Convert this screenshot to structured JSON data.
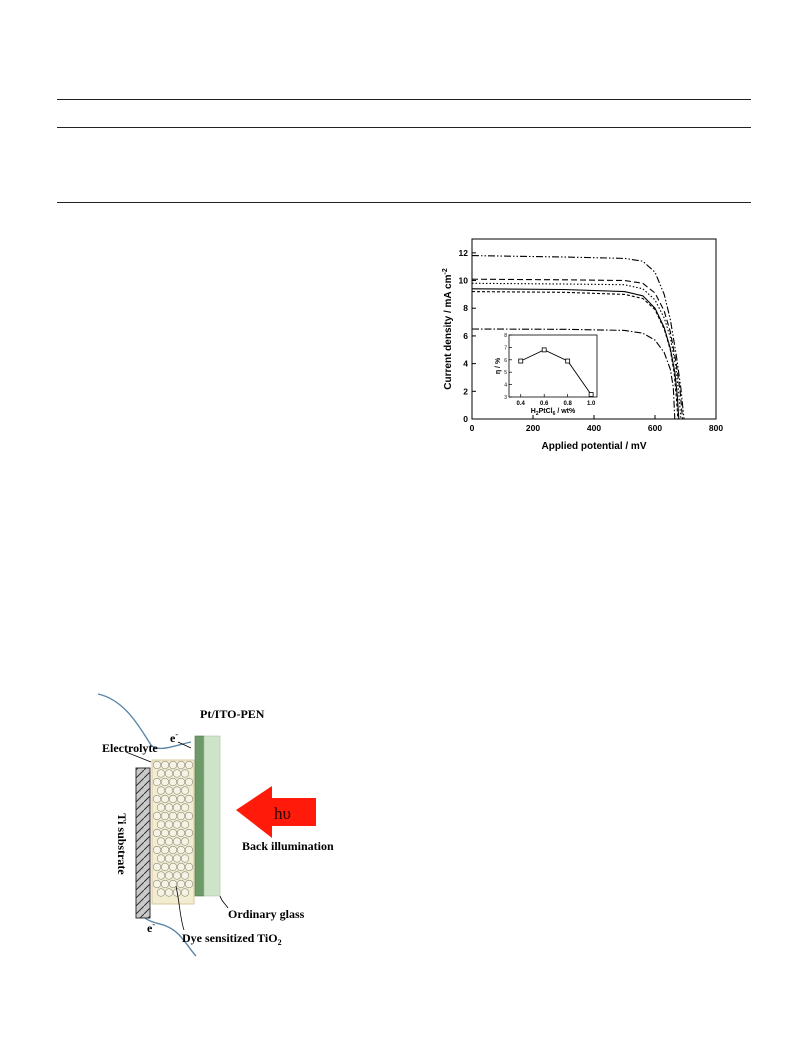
{
  "chart_data": {
    "type": "line",
    "xlabel": "Applied potential / mV",
    "ylabel": "Current density / mA cm",
    "ylabel_sup": "-2",
    "xlim": [
      0,
      800
    ],
    "ylim": [
      0,
      13
    ],
    "x_ticks": [
      "0",
      "200",
      "400",
      "600",
      "800"
    ],
    "y_ticks": [
      "0",
      "2",
      "4",
      "6",
      "8",
      "10",
      "12"
    ],
    "series": [
      {
        "style": "dash-dot-dot",
        "jsc": 11.8,
        "voc": 695,
        "points": [
          [
            0,
            11.8
          ],
          [
            300,
            11.7
          ],
          [
            500,
            11.6
          ],
          [
            560,
            11.4
          ],
          [
            600,
            10.6
          ],
          [
            630,
            9.0
          ],
          [
            650,
            7.2
          ],
          [
            670,
            4.6
          ],
          [
            685,
            2.2
          ],
          [
            695,
            0
          ]
        ]
      },
      {
        "style": "dash",
        "jsc": 10.1,
        "voc": 690,
        "points": [
          [
            0,
            10.1
          ],
          [
            300,
            10.05
          ],
          [
            500,
            10.0
          ],
          [
            560,
            9.8
          ],
          [
            600,
            9.1
          ],
          [
            630,
            7.8
          ],
          [
            650,
            6.3
          ],
          [
            670,
            4.0
          ],
          [
            683,
            1.9
          ],
          [
            690,
            0
          ]
        ]
      },
      {
        "style": "dot",
        "jsc": 9.8,
        "voc": 685,
        "points": [
          [
            0,
            9.8
          ],
          [
            300,
            9.75
          ],
          [
            500,
            9.7
          ],
          [
            560,
            9.4
          ],
          [
            600,
            8.6
          ],
          [
            630,
            7.3
          ],
          [
            650,
            5.9
          ],
          [
            668,
            3.8
          ],
          [
            678,
            1.8
          ],
          [
            685,
            0
          ]
        ]
      },
      {
        "style": "solid",
        "jsc": 9.4,
        "voc": 678,
        "points": [
          [
            0,
            9.4
          ],
          [
            300,
            9.35
          ],
          [
            500,
            9.2
          ],
          [
            560,
            8.9
          ],
          [
            600,
            8.0
          ],
          [
            630,
            6.6
          ],
          [
            650,
            5.1
          ],
          [
            665,
            3.4
          ],
          [
            673,
            1.7
          ],
          [
            678,
            0
          ]
        ]
      },
      {
        "style": "short-dash",
        "jsc": 9.2,
        "voc": 675,
        "points": [
          [
            0,
            9.2
          ],
          [
            300,
            9.15
          ],
          [
            500,
            9.0
          ],
          [
            560,
            8.7
          ],
          [
            600,
            7.9
          ],
          [
            630,
            6.5
          ],
          [
            650,
            5.0
          ],
          [
            663,
            3.3
          ],
          [
            670,
            1.6
          ],
          [
            675,
            0
          ]
        ]
      },
      {
        "style": "dash-dot",
        "jsc": 6.5,
        "voc": 665,
        "points": [
          [
            0,
            6.5
          ],
          [
            300,
            6.48
          ],
          [
            500,
            6.4
          ],
          [
            560,
            6.2
          ],
          [
            600,
            5.7
          ],
          [
            630,
            4.8
          ],
          [
            650,
            3.6
          ],
          [
            660,
            2.3
          ],
          [
            665,
            0
          ]
        ]
      }
    ],
    "inset": {
      "type": "line",
      "xlabel": "H",
      "xlabel_sub1": "2",
      "xlabel_mid": "PtCl",
      "xlabel_sub2": "6",
      "xlabel_end": " / wt%",
      "ylabel": "η / %",
      "xlim": [
        0.3,
        1.05
      ],
      "ylim": [
        3,
        8
      ],
      "x_ticks": [
        "0.4",
        "0.6",
        "0.8",
        "1.0"
      ],
      "y_ticks": [
        "3",
        "4",
        "5",
        "6",
        "7",
        "8"
      ],
      "x": [
        0.4,
        0.6,
        0.8,
        1.0
      ],
      "y": [
        5.9,
        6.8,
        5.9,
        3.2
      ]
    }
  },
  "schematic": {
    "top_electrode_label": "Pt/ITO-PEN",
    "electrolyte_label": "Electrolyte",
    "substrate_label": "Ti substrate",
    "electron_top": "e",
    "electron_bottom": "e",
    "electron_sup": "-",
    "light_label": "hυ",
    "illumination_label": "Back illumination",
    "glass_label": "Ordinary glass",
    "tio2_label": "Dye sensitized TiO",
    "tio2_sub": "2",
    "colors": {
      "arrow": "#ff1a0a",
      "ito": "#6e9a6a",
      "glass": "#cfe3c8",
      "tio2_fill": "#f2ecd0",
      "wire": "#5b86a8"
    }
  }
}
